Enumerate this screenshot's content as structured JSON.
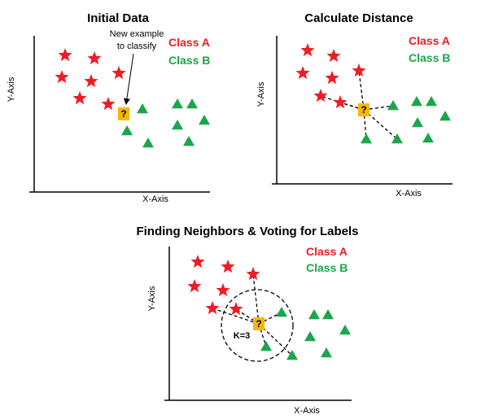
{
  "colors": {
    "class_a": "#ee1c25",
    "class_b": "#1aa64a",
    "query": "#f5b800",
    "axis": "#000000"
  },
  "panels": [
    {
      "id": "initial",
      "title": "Initial Data",
      "legend": {
        "class_a": "Class A",
        "class_b": "Class B"
      },
      "x_axis_label": "X-Axis",
      "y_axis_label": "Y-Axis",
      "annotation": [
        "New example",
        "to classify"
      ],
      "query_symbol": "?"
    },
    {
      "id": "distance",
      "title": "Calculate Distance",
      "legend": {
        "class_a": "Class A",
        "class_b": "Class B"
      },
      "x_axis_label": "X-Axis",
      "y_axis_label": "Y-Axis",
      "query_symbol": "?"
    },
    {
      "id": "voting",
      "title": "Finding Neighbors & Voting for Labels",
      "legend": {
        "class_a": "Class A",
        "class_b": "Class B"
      },
      "x_axis_label": "X-Axis",
      "y_axis_label": "Y-Axis",
      "query_symbol": "?",
      "k_label": "K=3"
    }
  ]
}
